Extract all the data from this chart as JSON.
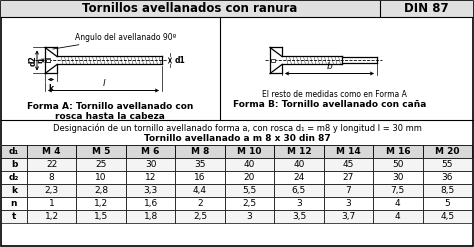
{
  "title_left": "Tornillos avellanados con ranura",
  "title_right": "DIN 87",
  "diagram_label_a": "Forma A: Tornillo avellanado con\nrosca hasta la cabeza",
  "diagram_label_b": "Forma B: Tornillo avellanado con caña",
  "diagram_note": "El resto de medidas como en Forma A",
  "angle_label": "Angulo del avellanado 90º",
  "designation_text": "Designación de un tornillo avellanado forma a, con rosca d₁ = m8 y longitud l = 30 mm",
  "table_title": "Tornillo avellanado a m 8 x 30 din 87",
  "col_headers": [
    "d₁",
    "M 4",
    "M 5",
    "M 6",
    "M 8",
    "M 10",
    "M 12",
    "M 14",
    "M 16",
    "M 20"
  ],
  "rows": [
    [
      "b",
      "22",
      "25",
      "30",
      "35",
      "40",
      "40",
      "45",
      "50",
      "55"
    ],
    [
      "d₂",
      "8",
      "10",
      "12",
      "16",
      "20",
      "24",
      "27",
      "30",
      "36"
    ],
    [
      "k",
      "2,3",
      "2,8",
      "3,3",
      "4,4",
      "5,5",
      "6,5",
      "7",
      "7,5",
      "8,5"
    ],
    [
      "n",
      "1",
      "1,2",
      "1,6",
      "2",
      "2,5",
      "3",
      "3",
      "4",
      "5"
    ],
    [
      "t",
      "1,2",
      "1,5",
      "1,8",
      "2,5",
      "3",
      "3,5",
      "3,7",
      "4",
      "4,5"
    ]
  ],
  "fig_width": 4.74,
  "fig_height": 2.47
}
